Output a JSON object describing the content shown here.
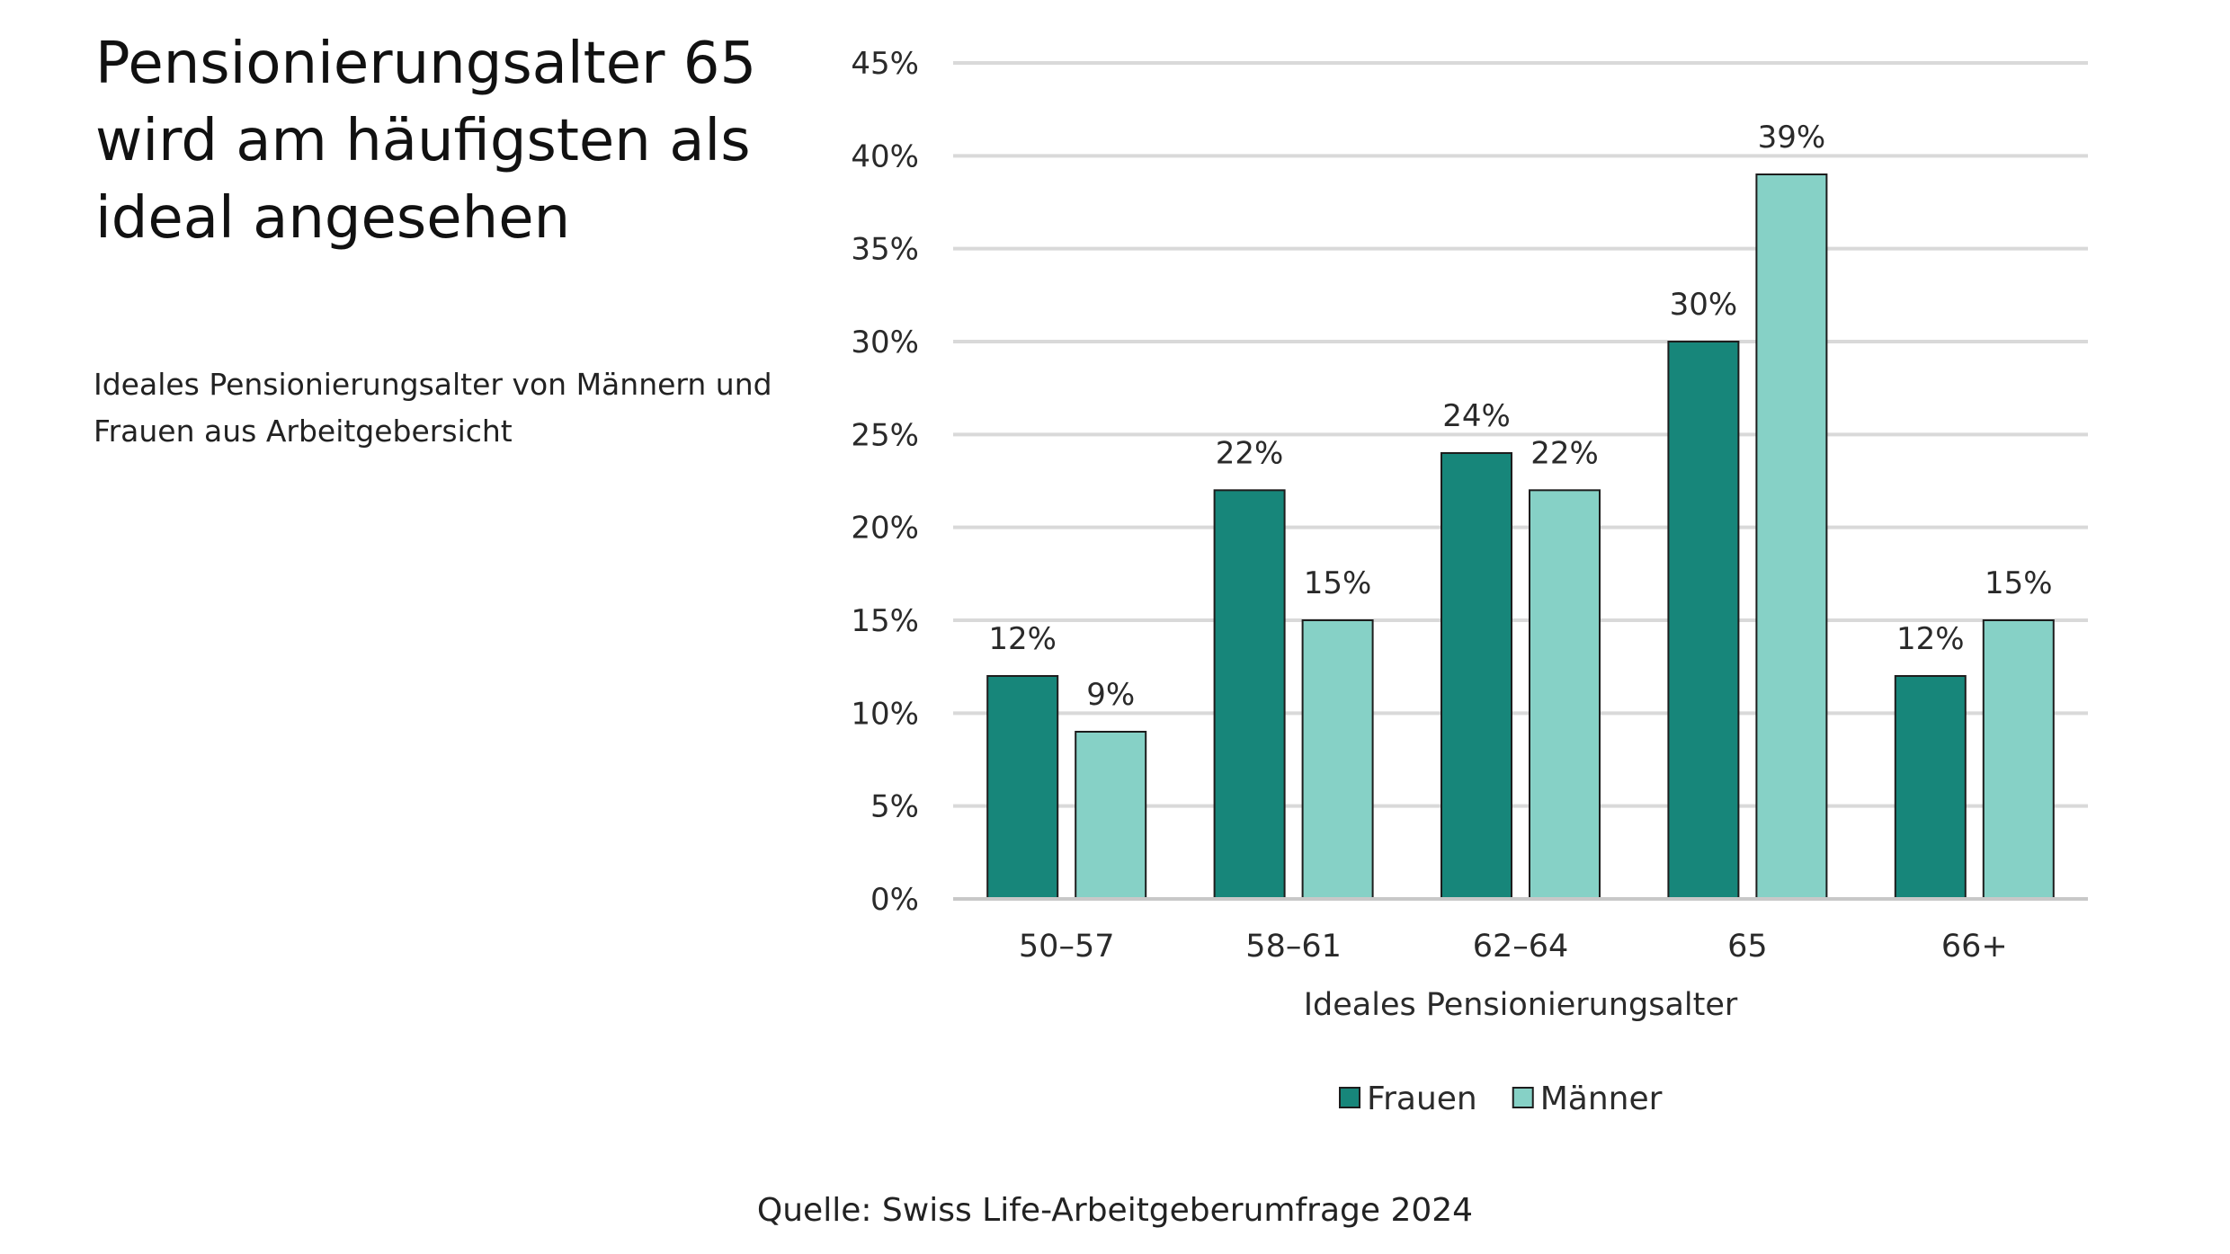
{
  "title_lines": [
    "Pensionierungsalter 65",
    "wird am häufigsten als",
    "ideal angesehen"
  ],
  "subtitle_lines": [
    "Ideales Pensionierungsalter von Männern und",
    "Frauen aus Arbeitgebersicht"
  ],
  "source": "Quelle: Swiss Life-Arbeitgeberumfrage 2024",
  "chart_data": {
    "type": "bar",
    "categories": [
      "50–57",
      "58–61",
      "62–64",
      "65",
      "66+"
    ],
    "series": [
      {
        "name": "Frauen",
        "values": [
          12,
          22,
          24,
          30,
          12
        ],
        "labels": [
          "12%",
          "22%",
          "24%",
          "30%",
          "12%"
        ],
        "color": "#17867a"
      },
      {
        "name": "Männer",
        "values": [
          9,
          15,
          22,
          39,
          15
        ],
        "labels": [
          "9%",
          "15%",
          "22%",
          "39%",
          "15%"
        ],
        "color": "#86d1c6"
      }
    ],
    "xlabel": "Ideales Pensionierungsalter",
    "ylabel": "",
    "ylim": [
      0,
      45
    ],
    "yticks": [
      0,
      5,
      10,
      15,
      20,
      25,
      30,
      35,
      40,
      45
    ],
    "ytick_labels": [
      "0%",
      "5%",
      "10%",
      "15%",
      "20%",
      "25%",
      "30%",
      "35%",
      "40%",
      "45%"
    ],
    "grid": true,
    "legend_position": "bottom-center"
  }
}
